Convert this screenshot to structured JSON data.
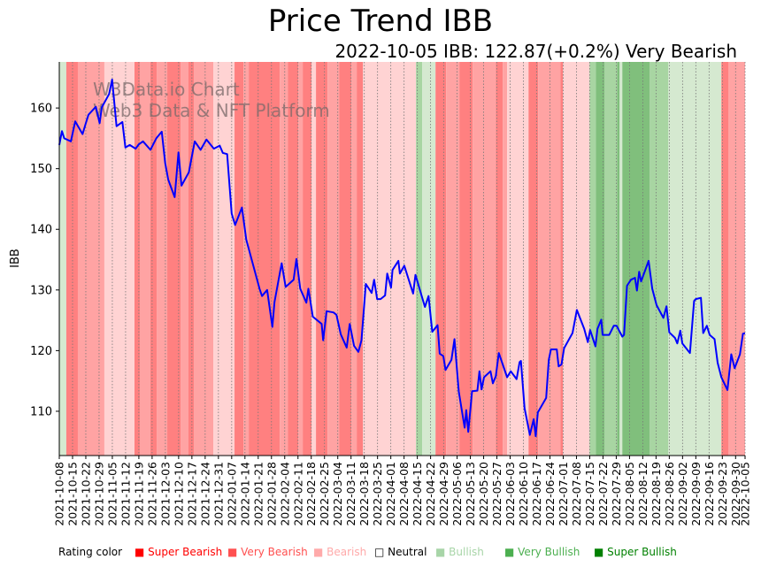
{
  "chart_data": {
    "type": "line",
    "title": "Price Trend IBB",
    "subtitle": "2022-10-05 IBB: 122.87(+0.2%) Very Bearish",
    "ylabel": "IBB",
    "xlabel": "",
    "x_start_date": "2021-10-08",
    "x_unit": "days since 2021-10-08",
    "xlim": [
      0,
      362
    ],
    "ylim": [
      102.7,
      167.6
    ],
    "yticks": [
      110,
      120,
      130,
      140,
      150,
      160
    ],
    "xtick_labels": [
      "2021-10-08",
      "2021-10-15",
      "2021-10-22",
      "2021-10-29",
      "2021-11-05",
      "2021-11-12",
      "2021-11-19",
      "2021-11-26",
      "2021-12-03",
      "2021-12-10",
      "2021-12-17",
      "2021-12-24",
      "2021-12-31",
      "2022-01-07",
      "2022-01-14",
      "2022-01-21",
      "2022-01-28",
      "2022-02-04",
      "2022-02-11",
      "2022-02-18",
      "2022-02-25",
      "2022-03-04",
      "2022-03-11",
      "2022-03-18",
      "2022-03-25",
      "2022-04-01",
      "2022-04-08",
      "2022-04-15",
      "2022-04-22",
      "2022-04-29",
      "2022-05-06",
      "2022-05-13",
      "2022-05-20",
      "2022-05-27",
      "2022-06-03",
      "2022-06-10",
      "2022-06-17",
      "2022-06-24",
      "2022-07-01",
      "2022-07-08",
      "2022-07-15",
      "2022-07-22",
      "2022-07-29",
      "2022-08-05",
      "2022-08-12",
      "2022-08-19",
      "2022-08-26",
      "2022-09-02",
      "2022-09-09",
      "2022-09-16",
      "2022-09-23",
      "2022-09-30",
      "2022-10-05"
    ],
    "xtick_days": [
      0,
      7,
      14,
      21,
      28,
      35,
      42,
      49,
      56,
      63,
      70,
      77,
      84,
      91,
      98,
      105,
      112,
      119,
      126,
      133,
      140,
      147,
      154,
      161,
      168,
      175,
      182,
      189,
      196,
      203,
      210,
      217,
      224,
      231,
      238,
      245,
      252,
      259,
      266,
      273,
      280,
      287,
      294,
      301,
      308,
      315,
      322,
      329,
      336,
      343,
      350,
      357,
      362
    ],
    "series": [
      {
        "name": "IBB",
        "color": "#0000ff",
        "points": [
          [
            0,
            153.9
          ],
          [
            1.4,
            156.2
          ],
          [
            2.6,
            155
          ],
          [
            6.1,
            154.5
          ],
          [
            8.4,
            157.8
          ],
          [
            12.3,
            155.7
          ],
          [
            13.9,
            157.4
          ],
          [
            15.4,
            158.9
          ],
          [
            19.3,
            160.2
          ],
          [
            21.3,
            157.5
          ],
          [
            22.4,
            160.1
          ],
          [
            26.3,
            162.3
          ],
          [
            27.9,
            164.7
          ],
          [
            30.2,
            157
          ],
          [
            33.3,
            157.7
          ],
          [
            34.9,
            153.5
          ],
          [
            37.2,
            153.9
          ],
          [
            40.3,
            153.3
          ],
          [
            41.9,
            154
          ],
          [
            44.2,
            154.5
          ],
          [
            48.1,
            153.1
          ],
          [
            51.2,
            155
          ],
          [
            54.1,
            156.1
          ],
          [
            55.9,
            150.9
          ],
          [
            57.5,
            148.2
          ],
          [
            60.9,
            145.3
          ],
          [
            62.9,
            152.7
          ],
          [
            64.5,
            147.2
          ],
          [
            68.4,
            149.4
          ],
          [
            70,
            152.1
          ],
          [
            71.5,
            154.5
          ],
          [
            74.6,
            153.1
          ],
          [
            77.7,
            154.8
          ],
          [
            81.6,
            153.3
          ],
          [
            84.7,
            153.8
          ],
          [
            86.3,
            152.6
          ],
          [
            88.6,
            152.4
          ],
          [
            91,
            142.6
          ],
          [
            92.8,
            140.7
          ],
          [
            96.4,
            143.6
          ],
          [
            98.7,
            138.3
          ],
          [
            105.7,
            130.2
          ],
          [
            107,
            129
          ],
          [
            109.7,
            130
          ],
          [
            112.5,
            123.9
          ],
          [
            113.6,
            128
          ],
          [
            117.4,
            134.4
          ],
          [
            119.5,
            130.5
          ],
          [
            123.7,
            131.7
          ],
          [
            125.2,
            135.1
          ],
          [
            127.2,
            130.2
          ],
          [
            130.4,
            127.9
          ],
          [
            131.5,
            130.2
          ],
          [
            133.8,
            125.6
          ],
          [
            138.5,
            124.4
          ],
          [
            139.3,
            121.7
          ],
          [
            141.1,
            126.5
          ],
          [
            144.7,
            126.3
          ],
          [
            146.3,
            125.9
          ],
          [
            148.6,
            122.7
          ],
          [
            151.7,
            120.5
          ],
          [
            153.3,
            124.4
          ],
          [
            155.6,
            120.8
          ],
          [
            157.9,
            119.8
          ],
          [
            159.5,
            121.7
          ],
          [
            161.8,
            131
          ],
          [
            164.9,
            129.5
          ],
          [
            166.2,
            131.7
          ],
          [
            167.8,
            128.5
          ],
          [
            169.6,
            128.5
          ],
          [
            172,
            129.1
          ],
          [
            173.1,
            132.7
          ],
          [
            175.1,
            130.4
          ],
          [
            175.9,
            133.3
          ],
          [
            179,
            134.8
          ],
          [
            179.8,
            132.7
          ],
          [
            182.1,
            134
          ],
          [
            186.8,
            129.4
          ],
          [
            188,
            132.5
          ],
          [
            193,
            127.2
          ],
          [
            194.9,
            129
          ],
          [
            196.9,
            123.1
          ],
          [
            199.7,
            124.2
          ],
          [
            200.8,
            119.5
          ],
          [
            202.7,
            119.1
          ],
          [
            203.9,
            116.8
          ],
          [
            207,
            118.5
          ],
          [
            208.6,
            121.9
          ],
          [
            210.9,
            113.2
          ],
          [
            214,
            107.3
          ],
          [
            214.8,
            110.2
          ],
          [
            215.9,
            106.6
          ],
          [
            217.9,
            113.3
          ],
          [
            220.7,
            113.4
          ],
          [
            221.8,
            116.6
          ],
          [
            222.9,
            113.6
          ],
          [
            224.2,
            115.6
          ],
          [
            227.6,
            116.6
          ],
          [
            228.9,
            114.6
          ],
          [
            230.4,
            115.8
          ],
          [
            232,
            119.6
          ],
          [
            236.4,
            115.6
          ],
          [
            238.3,
            116.6
          ],
          [
            241.4,
            115.3
          ],
          [
            243,
            118.1
          ],
          [
            243.7,
            118.3
          ],
          [
            245.6,
            110.5
          ],
          [
            248.4,
            106.1
          ],
          [
            250.4,
            108.7
          ],
          [
            251.5,
            105.9
          ],
          [
            252.6,
            109.8
          ],
          [
            257,
            112.2
          ],
          [
            258.4,
            118.5
          ],
          [
            259.5,
            120.2
          ],
          [
            262.6,
            120.2
          ],
          [
            263.6,
            117.4
          ],
          [
            265.1,
            117.7
          ],
          [
            266.5,
            120.4
          ],
          [
            270.9,
            122.9
          ],
          [
            273.2,
            126.7
          ],
          [
            277.1,
            123.6
          ],
          [
            279,
            121.4
          ],
          [
            280.2,
            123.4
          ],
          [
            283,
            120.7
          ],
          [
            284.1,
            123.6
          ],
          [
            286.1,
            125.1
          ],
          [
            286.8,
            122.6
          ],
          [
            290.3,
            122.6
          ],
          [
            292.7,
            124.1
          ],
          [
            294.2,
            124.1
          ],
          [
            297.2,
            122.3
          ],
          [
            298.1,
            122.6
          ],
          [
            299.7,
            130.7
          ],
          [
            301.8,
            131.7
          ],
          [
            303.9,
            132
          ],
          [
            304.9,
            129.9
          ],
          [
            306.1,
            133
          ],
          [
            307.1,
            131.4
          ],
          [
            311.1,
            134.8
          ],
          [
            313,
            130.2
          ],
          [
            315.3,
            127.5
          ],
          [
            318.9,
            125.4
          ],
          [
            320.5,
            127.3
          ],
          [
            322,
            123
          ],
          [
            325,
            122.1
          ],
          [
            326.2,
            121.2
          ],
          [
            327.8,
            123.3
          ],
          [
            328.9,
            121.2
          ],
          [
            332.9,
            119.6
          ],
          [
            335.1,
            128.2
          ],
          [
            336,
            128.5
          ],
          [
            338.7,
            128.7
          ],
          [
            339.9,
            122.9
          ],
          [
            341.8,
            124.1
          ],
          [
            343.3,
            122.6
          ],
          [
            345.9,
            121.9
          ],
          [
            347.5,
            118
          ],
          [
            349.5,
            115.6
          ],
          [
            352.7,
            113.5
          ],
          [
            354.7,
            119.4
          ],
          [
            356.5,
            117.1
          ],
          [
            359.3,
            119.4
          ],
          [
            360.9,
            122.8
          ],
          [
            362,
            122.87
          ]
        ]
      }
    ],
    "rating_bands": [
      [
        0,
        3.7,
        4
      ],
      [
        3.7,
        9.8,
        0
      ],
      [
        9.8,
        23.8,
        1
      ],
      [
        23.8,
        39.7,
        2
      ],
      [
        39.7,
        42.5,
        0
      ],
      [
        42.5,
        48.1,
        1
      ],
      [
        48.1,
        51.4,
        0
      ],
      [
        51.4,
        57,
        1
      ],
      [
        57,
        64,
        0
      ],
      [
        64,
        68.2,
        1
      ],
      [
        68.2,
        71,
        0
      ],
      [
        71,
        81.3,
        1
      ],
      [
        81.3,
        92.5,
        2
      ],
      [
        92.5,
        97.2,
        0
      ],
      [
        97.2,
        100,
        1
      ],
      [
        100,
        116.4,
        0
      ],
      [
        116.4,
        120.6,
        1
      ],
      [
        120.6,
        126.2,
        0
      ],
      [
        126.2,
        128.5,
        1
      ],
      [
        128.5,
        133.2,
        0
      ],
      [
        133.2,
        135.5,
        2
      ],
      [
        135.5,
        141.6,
        0
      ],
      [
        141.6,
        147.7,
        1
      ],
      [
        147.7,
        154.2,
        0
      ],
      [
        154.2,
        157,
        1
      ],
      [
        157,
        160.3,
        0
      ],
      [
        160.3,
        188.3,
        2
      ],
      [
        188.3,
        191.6,
        5
      ],
      [
        191.6,
        198.6,
        4
      ],
      [
        198.6,
        204.2,
        0
      ],
      [
        204.2,
        211.2,
        1
      ],
      [
        211.2,
        218.2,
        0
      ],
      [
        218.2,
        230.4,
        1
      ],
      [
        230.4,
        234.1,
        0
      ],
      [
        234.1,
        236.4,
        1
      ],
      [
        236.4,
        247.7,
        2
      ],
      [
        247.7,
        252.8,
        0
      ],
      [
        252.8,
        264.5,
        1
      ],
      [
        264.5,
        265.9,
        0
      ],
      [
        265.9,
        279.9,
        2
      ],
      [
        279.9,
        283.2,
        5
      ],
      [
        283.2,
        287.9,
        6
      ],
      [
        287.9,
        294.4,
        5
      ],
      [
        294.4,
        295.8,
        6
      ],
      [
        295.8,
        297.2,
        4
      ],
      [
        297.2,
        311.7,
        6
      ],
      [
        311.7,
        321.5,
        5
      ],
      [
        321.5,
        349.5,
        4
      ],
      [
        349.5,
        353.3,
        0
      ],
      [
        353.3,
        362,
        1
      ]
    ],
    "band_colors": [
      "#ff8080",
      "#ffa3a3",
      "#ffd3d3",
      "#ffffff",
      "#d5e9d0",
      "#a8d5a2",
      "#80bf7c"
    ],
    "watermark": [
      "W3Data.io Chart",
      "Web3 Data & NFT Platform"
    ],
    "legend": {
      "label": "Rating color",
      "placement": "bottom",
      "items": [
        {
          "name": "Super Bearish",
          "color": "#ff0000"
        },
        {
          "name": "Very Bearish",
          "color": "#ff5050"
        },
        {
          "name": "Bearish",
          "color": "#ffaaaa"
        },
        {
          "name": "Neutral",
          "color": "#000000"
        },
        {
          "name": "Bullish",
          "color": "#a8d5a8"
        },
        {
          "name": "Very Bullish",
          "color": "#4caf50"
        },
        {
          "name": "Super Bullish",
          "color": "#008000"
        }
      ]
    }
  }
}
